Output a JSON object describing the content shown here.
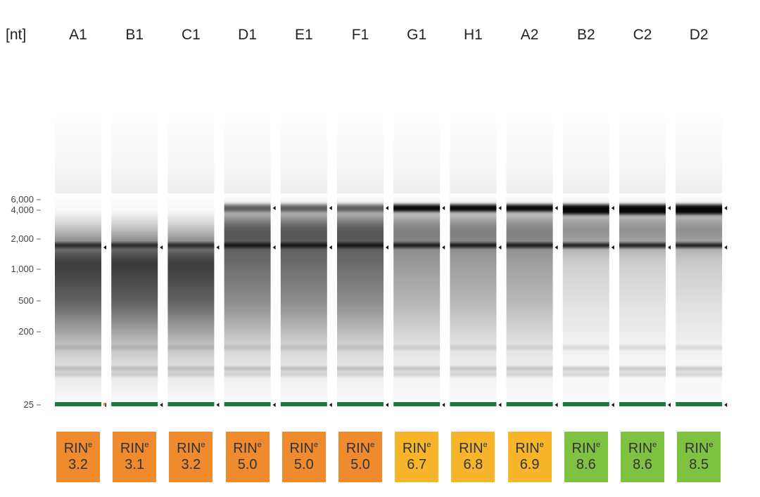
{
  "unit_label": "[nt]",
  "colors": {
    "low": "#f08a2e",
    "medium": "#f7b52b",
    "high": "#7fc241",
    "marker": "#1f7a3a"
  },
  "chart_data": {
    "type": "gel",
    "y_unit": "nt",
    "y_ticks": [
      {
        "label": "6,000",
        "nt": 6000
      },
      {
        "label": "4,000",
        "nt": 4000
      },
      {
        "label": "2,000",
        "nt": 2000
      },
      {
        "label": "1,000",
        "nt": 1000
      },
      {
        "label": "500",
        "nt": 500
      },
      {
        "label": "200",
        "nt": 200
      },
      {
        "label": "25",
        "nt": 25
      }
    ],
    "lanes": [
      {
        "name": "A1",
        "rin": "3.2",
        "rin_label": "RIN",
        "rin_sup": "e",
        "category": "low"
      },
      {
        "name": "B1",
        "rin": "3.1",
        "rin_label": "RIN",
        "rin_sup": "e",
        "category": "low"
      },
      {
        "name": "C1",
        "rin": "3.2",
        "rin_label": "RIN",
        "rin_sup": "e",
        "category": "low"
      },
      {
        "name": "D1",
        "rin": "5.0",
        "rin_label": "RIN",
        "rin_sup": "e",
        "category": "low"
      },
      {
        "name": "E1",
        "rin": "5.0",
        "rin_label": "RIN",
        "rin_sup": "e",
        "category": "low"
      },
      {
        "name": "F1",
        "rin": "5.0",
        "rin_label": "RIN",
        "rin_sup": "e",
        "category": "low"
      },
      {
        "name": "G1",
        "rin": "6.7",
        "rin_label": "RIN",
        "rin_sup": "e",
        "category": "medium"
      },
      {
        "name": "H1",
        "rin": "6.8",
        "rin_label": "RIN",
        "rin_sup": "e",
        "category": "medium"
      },
      {
        "name": "A2",
        "rin": "6.9",
        "rin_label": "RIN",
        "rin_sup": "e",
        "category": "medium"
      },
      {
        "name": "B2",
        "rin": "8.6",
        "rin_label": "RIN",
        "rin_sup": "e",
        "category": "high"
      },
      {
        "name": "C2",
        "rin": "8.6",
        "rin_label": "RIN",
        "rin_sup": "e",
        "category": "high"
      },
      {
        "name": "D2",
        "rin": "8.5",
        "rin_label": "RIN",
        "rin_sup": "e",
        "category": "high"
      }
    ]
  }
}
